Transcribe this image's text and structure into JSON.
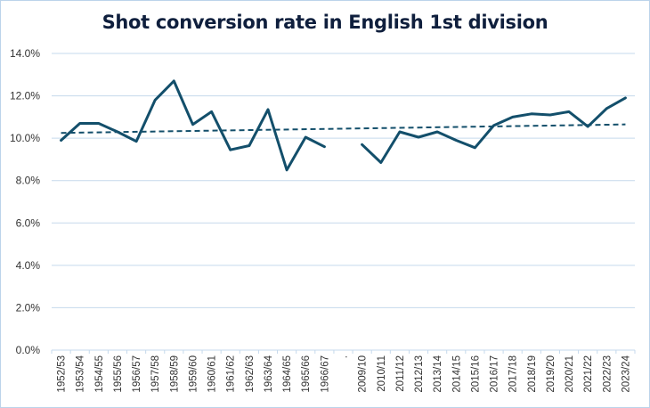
{
  "chart_data": {
    "type": "line",
    "title": "Shot conversion rate in English 1st division",
    "xlabel": "",
    "ylabel": "",
    "ylim": [
      0,
      14
    ],
    "yticks": [
      0,
      2,
      4,
      6,
      8,
      10,
      12,
      14
    ],
    "ytick_labels": [
      "0.0%",
      "2.0%",
      "4.0%",
      "6.0%",
      "8.0%",
      "10.0%",
      "12.0%",
      "14.0%"
    ],
    "grid": true,
    "legend": "none",
    "categories": [
      "1952/53",
      "1953/54",
      "1954/55",
      "1955/56",
      "1956/57",
      "1957/58",
      "1958/59",
      "1959/60",
      "1960/61",
      "1961/62",
      "1962/63",
      "1963/64",
      "1964/65",
      "1965/66",
      "1966/67",
      ".",
      "2009/10",
      "2010/11",
      "2011/12",
      "2012/13",
      "2013/14",
      "2014/15",
      "2015/16",
      "2016/17",
      "2017/18",
      "2018/19",
      "2019/20",
      "2020/21",
      "2021/22",
      "2022/23",
      "2023/24"
    ],
    "series": [
      {
        "name": "Shot conversion rate",
        "color": "#134f6b",
        "values": [
          9.9,
          10.7,
          10.7,
          10.3,
          9.85,
          11.8,
          12.7,
          10.65,
          11.25,
          9.45,
          9.65,
          11.35,
          8.5,
          10.05,
          9.6,
          null,
          9.7,
          8.85,
          10.3,
          10.05,
          10.3,
          9.9,
          9.55,
          10.6,
          11.0,
          11.15,
          11.1,
          11.25,
          10.55,
          11.4,
          11.9
        ]
      },
      {
        "name": "Linear trend",
        "style": "dashed",
        "color": "#134f6b",
        "values_endpoints": [
          10.25,
          10.65
        ]
      }
    ]
  },
  "colors": {
    "line": "#134f6b",
    "grid": "#c5d9ec",
    "border": "#bcd3ea",
    "title": "#0f1f3d"
  }
}
